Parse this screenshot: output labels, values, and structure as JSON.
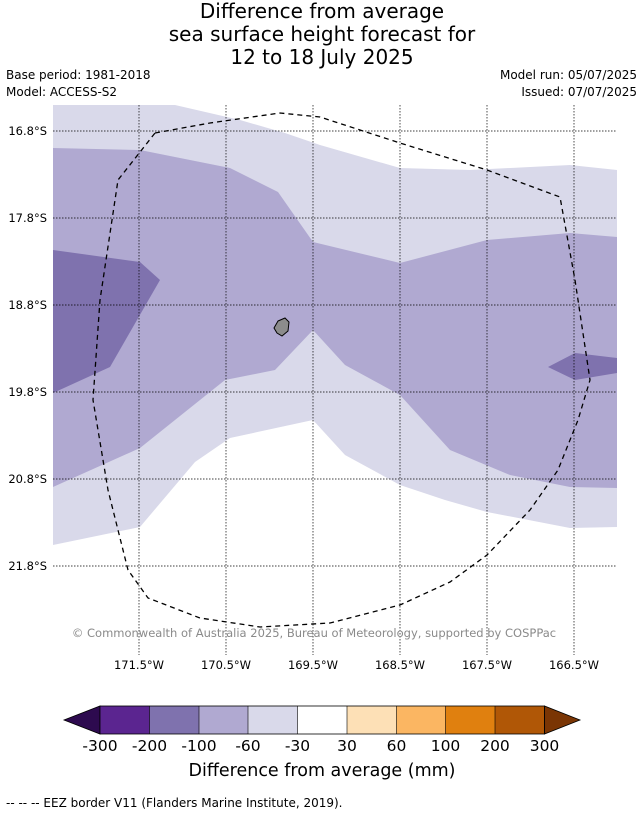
{
  "title": {
    "line1": "Difference from average",
    "line2": "sea surface height forecast for",
    "line3": "12 to 18 July 2025"
  },
  "meta": {
    "base_period": "Base period: 1981-2018",
    "model": "Model: ACCESS-S2",
    "model_run": "Model run: 05/07/2025",
    "issued": "Issued: 07/07/2025"
  },
  "map": {
    "lat_labels": [
      "16.8°S",
      "17.8°S",
      "18.8°S",
      "19.8°S",
      "20.8°S",
      "21.8°S"
    ],
    "lon_labels": [
      "171.5°W",
      "170.5°W",
      "169.5°W",
      "168.5°W",
      "167.5°W",
      "166.5°W"
    ],
    "copyright": "© Commonwealth of Australia 2025, Bureau of Meteorology, supported by COSPPac",
    "colors": {
      "lt100": "#7f72ae",
      "lt60": "#b0a9d1",
      "lt30": "#d9d9ea",
      "land": "#8c8c8c"
    }
  },
  "colorbar": {
    "ticks": [
      "-300",
      "-200",
      "-100",
      "-60",
      "-30",
      "30",
      "60",
      "100",
      "200",
      "300"
    ],
    "colors": [
      "#2d0a4f",
      "#5b2590",
      "#7f72ae",
      "#b0a9d1",
      "#d9d9ea",
      "#ffffff",
      "#fde0b6",
      "#fbb662",
      "#e0800f",
      "#b05706",
      "#7a3504"
    ],
    "title": "Difference from average (mm)"
  },
  "footnote": "--  --  -- EEZ border V11 (Flanders Marine Institute, 2019)."
}
